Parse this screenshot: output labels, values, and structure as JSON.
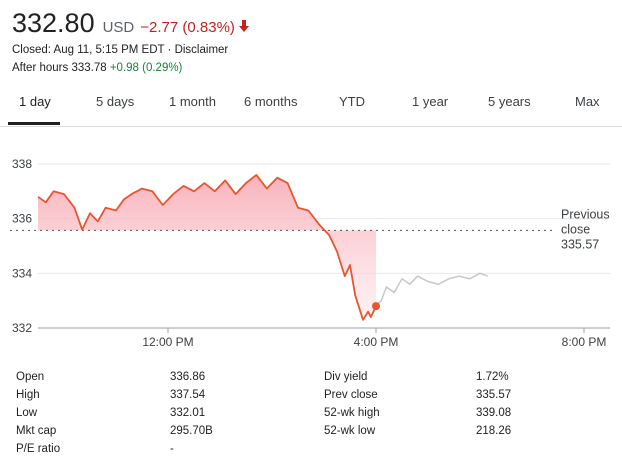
{
  "quote": {
    "price": "332.80",
    "currency": "USD",
    "change": "−2.77 (0.83%)",
    "change_arrow": "arrow-down-icon",
    "closed_text": "Closed: Aug 11, 5:15 PM EDT · Disclaimer",
    "after_hours_label": "After hours 333.78",
    "after_hours_change": "+0.98 (0.29%)"
  },
  "colors": {
    "down": "#c5221f",
    "up": "#188038",
    "line": "#e8552f",
    "after_hours_line": "#c8c8c8"
  },
  "tabs": [
    {
      "label": "1 day",
      "active": true
    },
    {
      "label": "5 days"
    },
    {
      "label": "1 month"
    },
    {
      "label": "6 months"
    },
    {
      "label": "YTD"
    },
    {
      "label": "1 year"
    },
    {
      "label": "5 years"
    },
    {
      "label": "Max"
    }
  ],
  "chart_data": {
    "type": "line",
    "y_ticks": [
      "338",
      "336",
      "334",
      "332"
    ],
    "x_ticks": [
      "12:00 PM",
      "4:00 PM",
      "8:00 PM"
    ],
    "ylim": [
      332,
      338
    ],
    "xlim": [
      9.5,
      20.5
    ],
    "grid": true,
    "reference_label": [
      "Previous",
      "close",
      "335.57"
    ],
    "reference_value": 335.57,
    "series": [
      {
        "session": "regular",
        "x": [
          9.5,
          9.65,
          9.8,
          10.0,
          10.2,
          10.35,
          10.5,
          10.65,
          10.8,
          11.0,
          11.15,
          11.3,
          11.5,
          11.7,
          11.9,
          12.1,
          12.3,
          12.5,
          12.7,
          12.9,
          13.1,
          13.3,
          13.5,
          13.7,
          13.9,
          14.1,
          14.3,
          14.5,
          14.7,
          14.9,
          15.1,
          15.25,
          15.4,
          15.5,
          15.6,
          15.75,
          15.85,
          15.9,
          16.0
        ],
        "y": [
          336.8,
          336.6,
          337.0,
          336.9,
          336.4,
          335.6,
          336.2,
          335.9,
          336.4,
          336.3,
          336.7,
          336.9,
          337.1,
          337.0,
          336.5,
          336.9,
          337.2,
          337.0,
          337.3,
          337.0,
          337.4,
          336.9,
          337.3,
          337.6,
          337.1,
          337.5,
          337.3,
          336.4,
          336.3,
          335.8,
          335.4,
          334.8,
          333.9,
          334.3,
          333.2,
          332.3,
          332.6,
          332.4,
          332.8
        ]
      },
      {
        "session": "after_hours",
        "x": [
          16.0,
          16.1,
          16.2,
          16.35,
          16.5,
          16.65,
          16.8,
          17.0,
          17.2,
          17.4,
          17.6,
          17.8,
          18.0,
          18.15
        ],
        "y": [
          332.8,
          333.0,
          333.5,
          333.3,
          333.8,
          333.6,
          333.9,
          333.7,
          333.6,
          333.8,
          333.9,
          333.8,
          334.0,
          333.9
        ]
      }
    ],
    "marker": {
      "x": 16.0,
      "y": 332.8
    }
  },
  "stats": {
    "left": [
      {
        "label": "Open",
        "value": "336.86"
      },
      {
        "label": "High",
        "value": "337.54"
      },
      {
        "label": "Low",
        "value": "332.01"
      },
      {
        "label": "Mkt cap",
        "value": "295.70B"
      },
      {
        "label": "P/E ratio",
        "value": "-"
      }
    ],
    "right": [
      {
        "label": "Div yield",
        "value": "1.72%"
      },
      {
        "label": "Prev close",
        "value": "335.57"
      },
      {
        "label": "52-wk high",
        "value": "339.08"
      },
      {
        "label": "52-wk low",
        "value": "218.26"
      }
    ]
  }
}
